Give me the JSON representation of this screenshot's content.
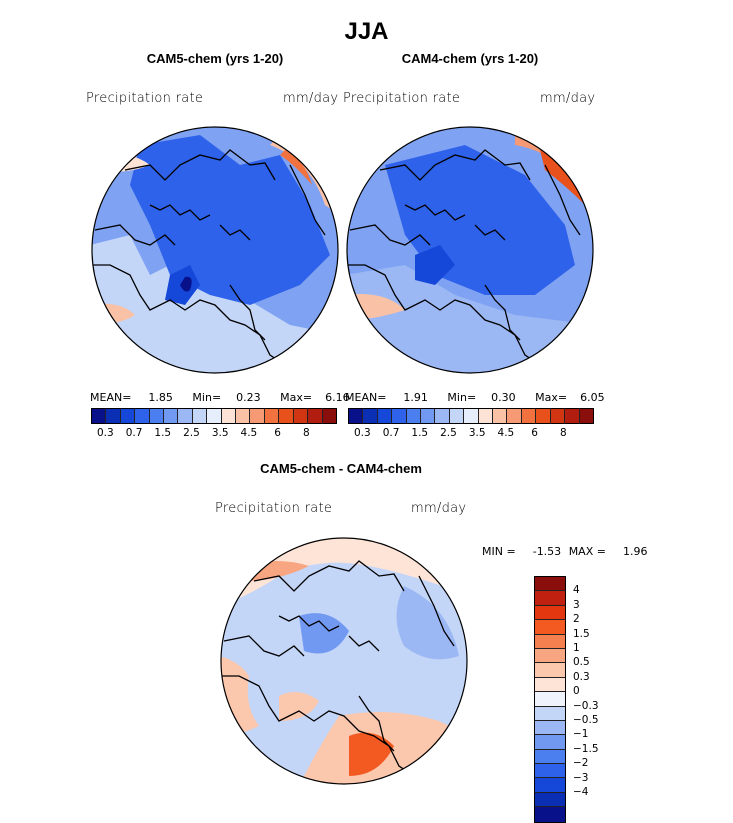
{
  "title": "JJA",
  "panels": [
    {
      "id": "cam5",
      "title": "CAM5-chem (yrs 1-20)",
      "variable": "Precipitation rate",
      "units": "mm/day",
      "stats": {
        "mean_label": "MEAN=",
        "mean": "1.85",
        "min_label": "Min=",
        "min": "0.23",
        "max_label": "Max=",
        "max": "6.16"
      }
    },
    {
      "id": "cam4",
      "title": "CAM4-chem (yrs 1-20)",
      "variable": "Precipitation rate",
      "units": "mm/day",
      "stats": {
        "mean_label": "MEAN=",
        "mean": "1.91",
        "min_label": "Min=",
        "min": "0.30",
        "max_label": "Max=",
        "max": "6.05"
      }
    }
  ],
  "diff": {
    "title": "CAM5-chem - CAM4-chem",
    "variable": "Precipitation rate",
    "units": "mm/day",
    "stats": {
      "min_label": "MIN =",
      "min": "-1.53",
      "max_label": "MAX =",
      "max": "1.96"
    }
  },
  "abs_colorbar": {
    "colors": [
      "#08108a",
      "#0a2fb5",
      "#1547d8",
      "#2e62ea",
      "#4b7ff0",
      "#7299f2",
      "#9bb8f5",
      "#c4d6f8",
      "#e6eefb",
      "#fde3d6",
      "#f9c2a6",
      "#f59a74",
      "#f1713f",
      "#e8501c",
      "#d23512",
      "#b11e0f",
      "#8a0f0c"
    ],
    "ticks": [
      "0.3",
      "0.7",
      "1.5",
      "2.5",
      "3.5",
      "4.5",
      "6",
      "8"
    ]
  },
  "diff_colorbar": {
    "colors_top_to_bottom": [
      "#8a0f0c",
      "#c0200f",
      "#e3380f",
      "#f25a22",
      "#f5804f",
      "#f8a682",
      "#fbc7ad",
      "#fde4d6",
      "#eef3fc",
      "#c4d6f8",
      "#9bb8f5",
      "#7299f2",
      "#4b7ff0",
      "#2e62ea",
      "#1547d8",
      "#0a2fb5",
      "#08108a"
    ],
    "ticks": [
      "4",
      "3",
      "2",
      "1.5",
      "1",
      "0.5",
      "0.3",
      "0",
      "−0.3",
      "−0.5",
      "−1",
      "−1.5",
      "−2",
      "−3",
      "−4"
    ]
  }
}
